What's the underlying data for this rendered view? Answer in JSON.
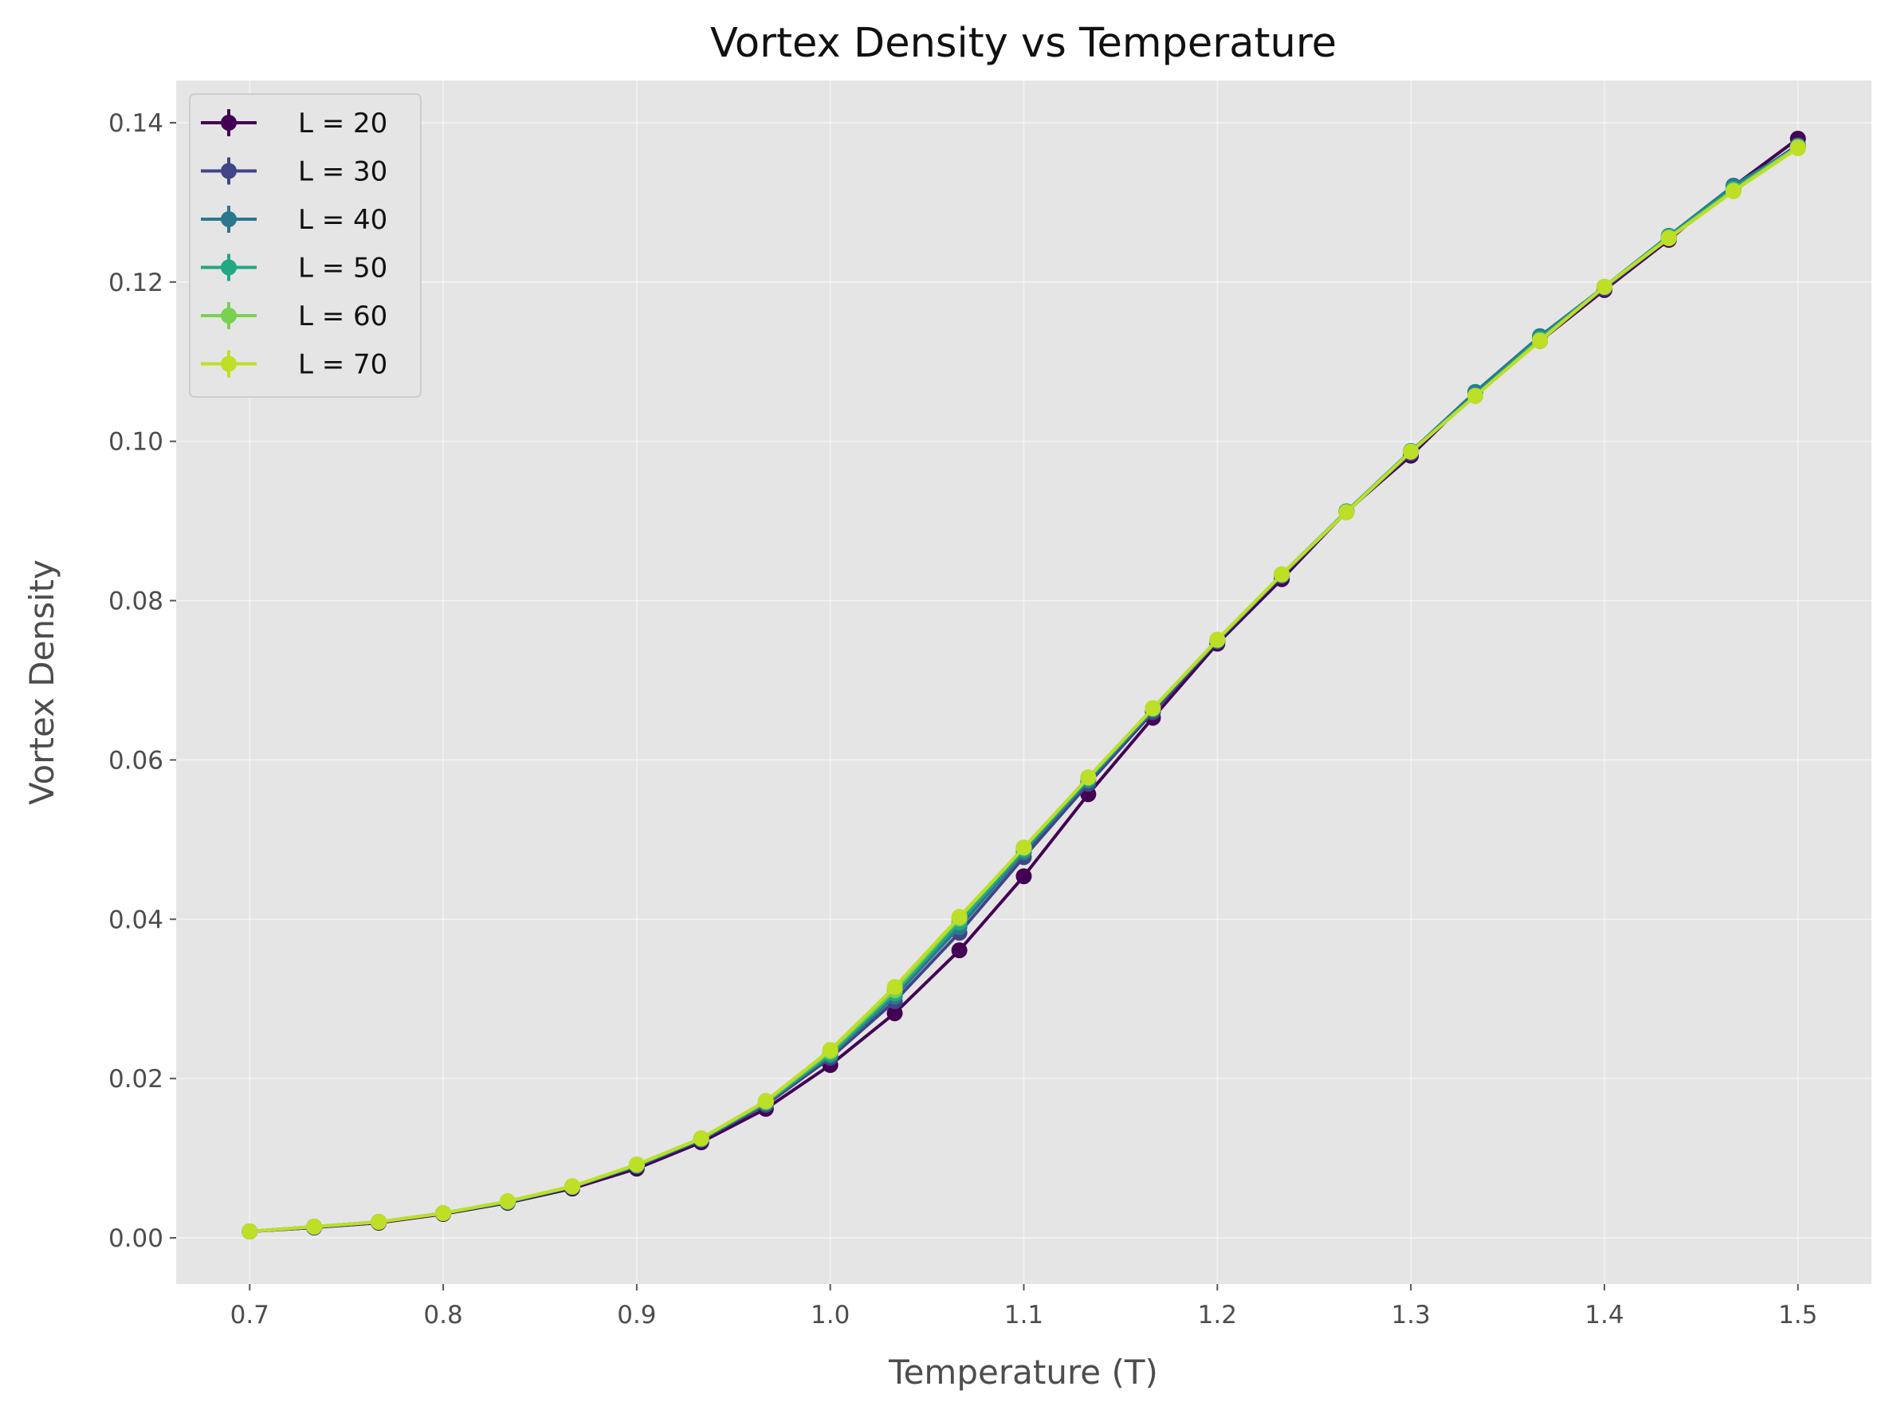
{
  "chart_data": {
    "type": "line",
    "title": "Vortex Density vs Temperature",
    "xlabel": "Temperature (T)",
    "ylabel": "Vortex Density",
    "xlim": [
      0.662,
      1.538
    ],
    "ylim": [
      -0.0058,
      0.1453
    ],
    "xticks": [
      0.7,
      0.8,
      0.9,
      1.0,
      1.1,
      1.2,
      1.3,
      1.4,
      1.5
    ],
    "xtick_labels": [
      "0.7",
      "0.8",
      "0.9",
      "1.0",
      "1.1",
      "1.2",
      "1.3",
      "1.4",
      "1.5"
    ],
    "yticks": [
      0.0,
      0.02,
      0.04,
      0.06,
      0.08,
      0.1,
      0.12,
      0.14
    ],
    "ytick_labels": [
      "0.00",
      "0.02",
      "0.04",
      "0.06",
      "0.08",
      "0.10",
      "0.12",
      "0.14"
    ],
    "grid": true,
    "legend_position": "top-left",
    "markers": "circle with error bars",
    "x": [
      0.7,
      0.7333,
      0.7667,
      0.8,
      0.8333,
      0.8667,
      0.9,
      0.9333,
      0.9667,
      1.0,
      1.0333,
      1.0667,
      1.1,
      1.1333,
      1.1667,
      1.2,
      1.2333,
      1.2667,
      1.3,
      1.3333,
      1.3667,
      1.4,
      1.4333,
      1.4667,
      1.5
    ],
    "series": [
      {
        "name": "L = 20",
        "color": "#440154",
        "values": [
          0.0008,
          0.0013,
          0.0019,
          0.003,
          0.0044,
          0.0062,
          0.0087,
          0.012,
          0.0162,
          0.0217,
          0.0282,
          0.0361,
          0.0454,
          0.0557,
          0.0653,
          0.0746,
          0.0827,
          0.0912,
          0.0982,
          0.1061,
          0.1126,
          0.119,
          0.1253,
          0.132,
          0.138
        ]
      },
      {
        "name": "L = 30",
        "color": "#414487",
        "values": [
          0.0008,
          0.0013,
          0.002,
          0.0031,
          0.0045,
          0.0064,
          0.009,
          0.0123,
          0.0167,
          0.0226,
          0.0297,
          0.0383,
          0.0478,
          0.057,
          0.066,
          0.0749,
          0.0831,
          0.0911,
          0.0985,
          0.106,
          0.1128,
          0.1192,
          0.1255,
          0.1318,
          0.1372
        ]
      },
      {
        "name": "L = 40",
        "color": "#2a788e",
        "values": [
          0.0008,
          0.0014,
          0.002,
          0.0031,
          0.0045,
          0.0064,
          0.0091,
          0.0124,
          0.0169,
          0.0229,
          0.0303,
          0.039,
          0.0484,
          0.0574,
          0.0663,
          0.075,
          0.0832,
          0.0912,
          0.0987,
          0.1062,
          0.1132,
          0.1194,
          0.1258,
          0.1321,
          0.137
        ]
      },
      {
        "name": "L = 50",
        "color": "#22a884",
        "values": [
          0.0008,
          0.0014,
          0.002,
          0.0031,
          0.0045,
          0.0064,
          0.0091,
          0.0124,
          0.017,
          0.0231,
          0.0307,
          0.0396,
          0.0487,
          0.0576,
          0.0664,
          0.075,
          0.0833,
          0.0912,
          0.0988,
          0.1058,
          0.1129,
          0.1194,
          0.1257,
          0.1317,
          0.137
        ]
      },
      {
        "name": "L = 60",
        "color": "#7ad151",
        "values": [
          0.0008,
          0.0014,
          0.002,
          0.0031,
          0.0046,
          0.0064,
          0.0092,
          0.0125,
          0.0171,
          0.0234,
          0.0311,
          0.0401,
          0.049,
          0.0578,
          0.0665,
          0.0751,
          0.0833,
          0.0911,
          0.0987,
          0.1057,
          0.1127,
          0.1194,
          0.1256,
          0.1315,
          0.137
        ]
      },
      {
        "name": "L = 70",
        "color": "#bddf26",
        "values": [
          0.0008,
          0.0014,
          0.002,
          0.0031,
          0.0046,
          0.0065,
          0.0092,
          0.0125,
          0.0172,
          0.0236,
          0.0315,
          0.0403,
          0.049,
          0.0578,
          0.0665,
          0.0751,
          0.0833,
          0.0911,
          0.0987,
          0.1057,
          0.1126,
          0.1194,
          0.1255,
          0.1314,
          0.1368
        ]
      }
    ]
  }
}
